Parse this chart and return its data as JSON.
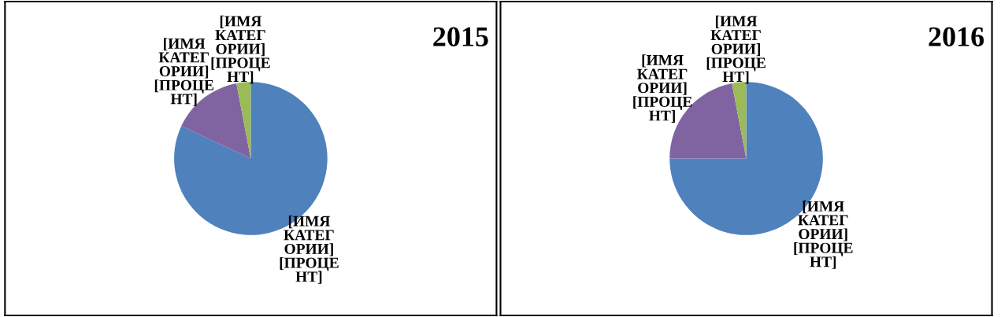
{
  "chart_data": [
    {
      "type": "pie",
      "title": "2015",
      "categories": [
        "[ИМЯ\nКАТЕГ\nОРИИ]\n[ПРОЦЕ\nНТ]",
        "[ИМЯ\nКАТЕГ\nОРИИ]\n[ПРОЦЕ\nНТ]",
        "[ИМЯ\nКАТЕГ\nОРИИ]\n[ПРОЦЕ\nНТ]"
      ],
      "values": [
        82,
        15,
        3
      ],
      "colors": [
        "#4f81bd",
        "#8064a2",
        "#9bbb59"
      ]
    },
    {
      "type": "pie",
      "title": "2016",
      "categories": [
        "[ИМЯ\nКАТЕГ\nОРИИ]\n[ПРОЦЕ\nНТ]",
        "[ИМЯ\nКАТЕГ\nОРИИ]\n[ПРОЦЕ\nНТ]",
        "[ИМЯ\nКАТЕГ\nОРИИ]\n[ПРОЦЕ\nНТ]"
      ],
      "values": [
        75,
        22,
        3
      ],
      "colors": [
        "#4f81bd",
        "#8064a2",
        "#9bbb59"
      ]
    }
  ]
}
